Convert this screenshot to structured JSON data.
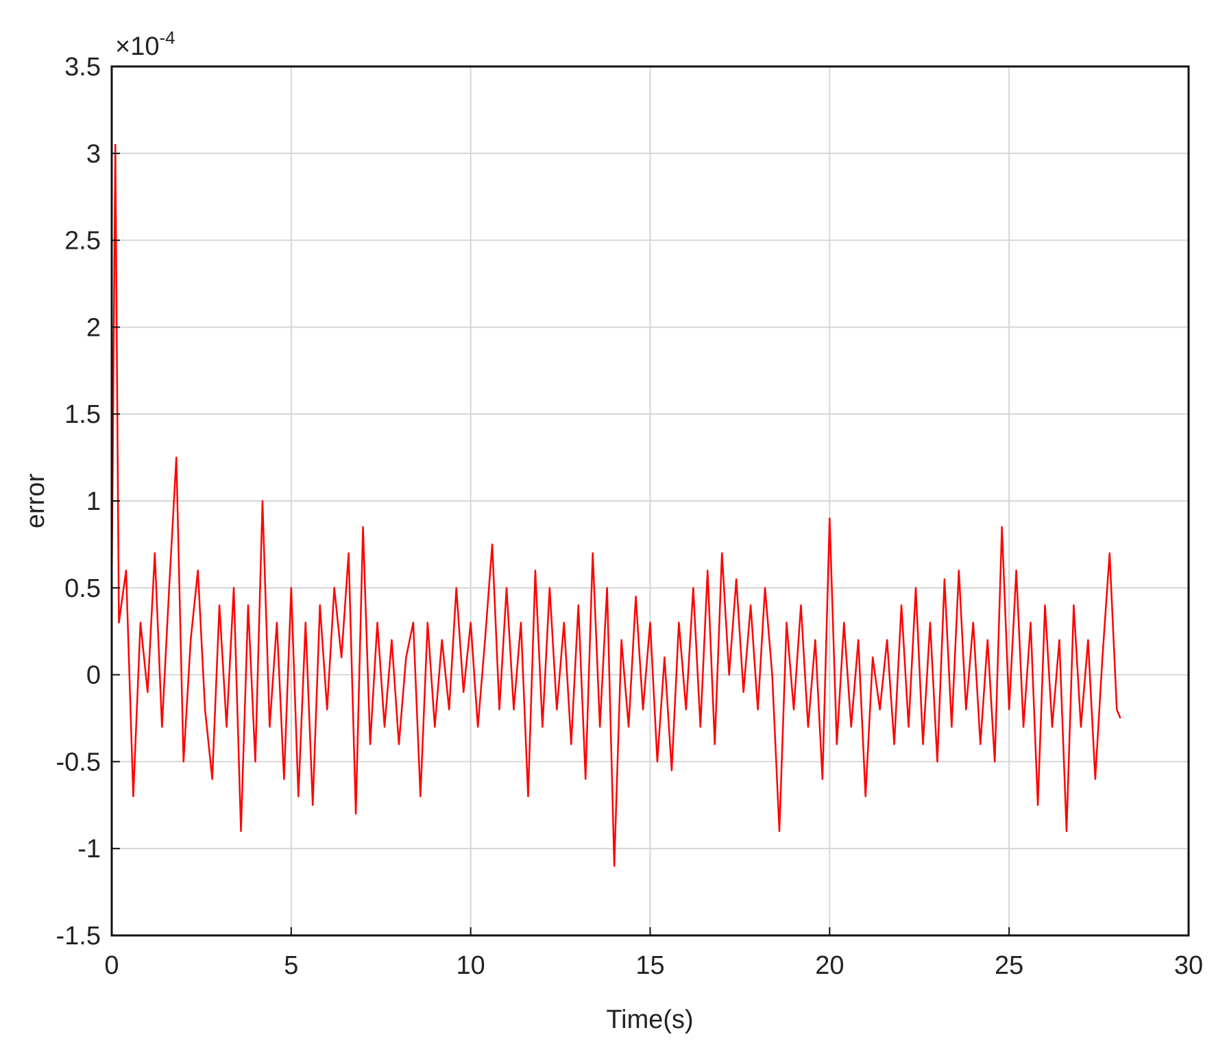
{
  "chart_data": {
    "type": "line",
    "xlabel": "Time(s)",
    "ylabel": "error",
    "multiplier": "×10",
    "multiplier_exponent": "-4",
    "xlim": [
      0,
      30
    ],
    "xticks": [
      0,
      5,
      10,
      15,
      20,
      25,
      30
    ],
    "ylim": [
      -1.5,
      3.5
    ],
    "yticks": [
      -1.5,
      -1,
      -0.5,
      0,
      0.5,
      1,
      1.5,
      2,
      2.5,
      3,
      3.5
    ],
    "grid": true,
    "series": [
      {
        "color": "#ff0000",
        "x": [
          0,
          0.1,
          0.2,
          0.4,
          0.6,
          0.8,
          1.0,
          1.2,
          1.4,
          1.6,
          1.8,
          2.0,
          2.2,
          2.4,
          2.6,
          2.8,
          3.0,
          3.2,
          3.4,
          3.6,
          3.8,
          4.0,
          4.2,
          4.4,
          4.6,
          4.8,
          5.0,
          5.2,
          5.4,
          5.6,
          5.8,
          6.0,
          6.2,
          6.4,
          6.6,
          6.8,
          7.0,
          7.2,
          7.4,
          7.6,
          7.8,
          8.0,
          8.2,
          8.4,
          8.6,
          8.8,
          9.0,
          9.2,
          9.4,
          9.6,
          9.8,
          10.0,
          10.2,
          10.4,
          10.6,
          10.8,
          11.0,
          11.2,
          11.4,
          11.6,
          11.8,
          12.0,
          12.2,
          12.4,
          12.6,
          12.8,
          13.0,
          13.2,
          13.4,
          13.6,
          13.8,
          14.0,
          14.2,
          14.4,
          14.6,
          14.8,
          15.0,
          15.2,
          15.4,
          15.6,
          15.8,
          16.0,
          16.2,
          16.4,
          16.6,
          16.8,
          17.0,
          17.2,
          17.4,
          17.6,
          17.8,
          18.0,
          18.2,
          18.4,
          18.6,
          18.8,
          19.0,
          19.2,
          19.4,
          19.6,
          19.8,
          20.0,
          20.2,
          20.4,
          20.6,
          20.8,
          21.0,
          21.2,
          21.4,
          21.6,
          21.8,
          22.0,
          22.2,
          22.4,
          22.6,
          22.8,
          23.0,
          23.2,
          23.4,
          23.6,
          23.8,
          24.0,
          24.2,
          24.4,
          24.6,
          24.8,
          25.0,
          25.2,
          25.4,
          25.6,
          25.8,
          26.0,
          26.2,
          26.4,
          26.6,
          26.8,
          27.0,
          27.2,
          27.4,
          27.6,
          27.8,
          28.0,
          28.1
        ],
        "values": [
          0.5,
          3.05,
          0.3,
          0.6,
          -0.7,
          0.3,
          -0.1,
          0.7,
          -0.3,
          0.5,
          1.25,
          -0.5,
          0.2,
          0.6,
          -0.2,
          -0.6,
          0.4,
          -0.3,
          0.5,
          -0.9,
          0.4,
          -0.5,
          1.0,
          -0.3,
          0.3,
          -0.6,
          0.5,
          -0.7,
          0.3,
          -0.75,
          0.4,
          -0.2,
          0.5,
          0.1,
          0.7,
          -0.8,
          0.85,
          -0.4,
          0.3,
          -0.3,
          0.2,
          -0.4,
          0.1,
          0.3,
          -0.7,
          0.3,
          -0.3,
          0.2,
          -0.2,
          0.5,
          -0.1,
          0.3,
          -0.3,
          0.2,
          0.75,
          -0.2,
          0.5,
          -0.2,
          0.3,
          -0.7,
          0.6,
          -0.3,
          0.5,
          -0.2,
          0.3,
          -0.4,
          0.4,
          -0.6,
          0.7,
          -0.3,
          0.5,
          -1.1,
          0.2,
          -0.3,
          0.45,
          -0.2,
          0.3,
          -0.5,
          0.1,
          -0.55,
          0.3,
          -0.2,
          0.5,
          -0.3,
          0.6,
          -0.4,
          0.7,
          0.0,
          0.55,
          -0.1,
          0.4,
          -0.2,
          0.5,
          0.0,
          -0.9,
          0.3,
          -0.2,
          0.4,
          -0.3,
          0.2,
          -0.6,
          0.9,
          -0.4,
          0.3,
          -0.3,
          0.2,
          -0.7,
          0.1,
          -0.2,
          0.2,
          -0.4,
          0.4,
          -0.3,
          0.5,
          -0.4,
          0.3,
          -0.5,
          0.55,
          -0.3,
          0.6,
          -0.2,
          0.3,
          -0.4,
          0.2,
          -0.5,
          0.85,
          -0.2,
          0.6,
          -0.3,
          0.3,
          -0.75,
          0.4,
          -0.3,
          0.2,
          -0.9,
          0.4,
          -0.3,
          0.2,
          -0.6,
          0.1,
          0.7,
          -0.2,
          -0.25
        ]
      }
    ]
  }
}
